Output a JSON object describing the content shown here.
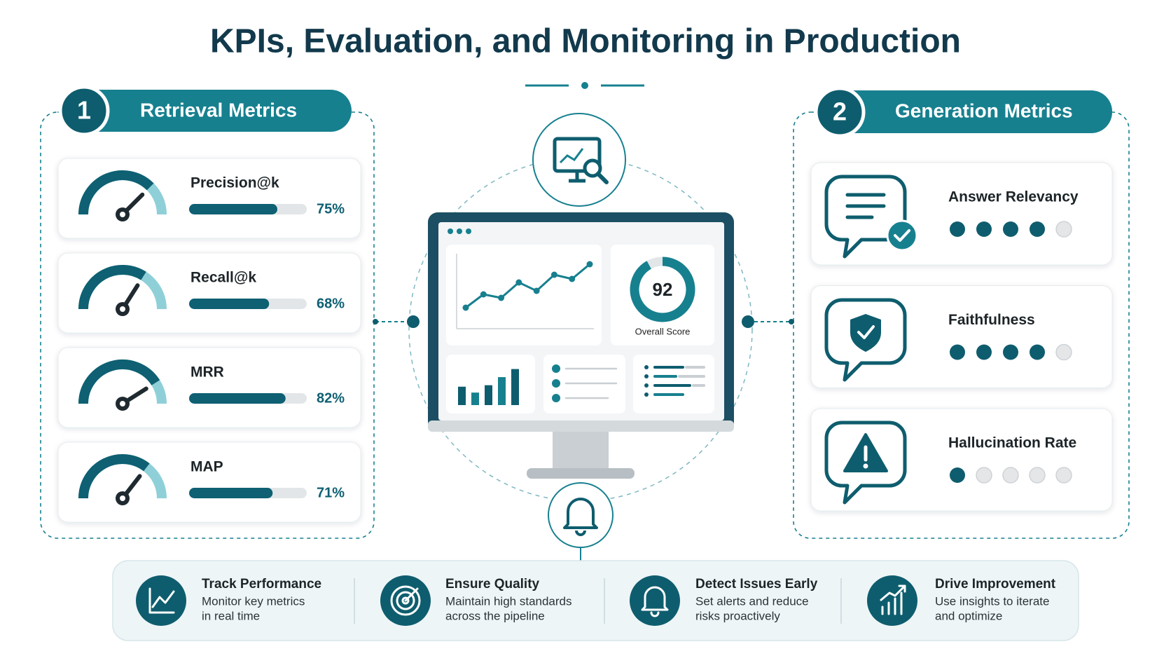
{
  "title": "KPIs, Evaluation, and Monitoring in Production",
  "retrieval": {
    "number": "1",
    "title": "Retrieval Metrics",
    "metrics": [
      {
        "name": "Precision@k",
        "value": 75,
        "label": "75%"
      },
      {
        "name": "Recall@k",
        "value": 68,
        "label": "68%"
      },
      {
        "name": "MRR",
        "value": 82,
        "label": "82%"
      },
      {
        "name": "MAP",
        "value": 71,
        "label": "71%"
      }
    ]
  },
  "generation": {
    "number": "2",
    "title": "Generation Metrics",
    "metrics": [
      {
        "name": "Answer Relevancy",
        "rating": 4,
        "dots": 5
      },
      {
        "name": "Faithfulness",
        "rating": 4,
        "dots": 5
      },
      {
        "name": "Hallucination Rate",
        "rating": 1,
        "dots": 5
      }
    ]
  },
  "dashboard": {
    "score": 92,
    "score_label": "Overall Score",
    "trend": [
      23,
      42,
      37,
      59,
      47,
      70,
      64,
      85
    ],
    "bars": [
      25,
      17,
      27,
      38,
      49
    ]
  },
  "highlights": [
    {
      "title": "Track Performance",
      "lines": [
        "Monitor key metrics",
        "in real time"
      ]
    },
    {
      "title": "Ensure Quality",
      "lines": [
        "Maintain high standards",
        "across the pipeline"
      ]
    },
    {
      "title": "Detect Issues Early",
      "lines": [
        "Set alerts and reduce",
        "risks proactively"
      ]
    },
    {
      "title": "Drive Improvement",
      "lines": [
        "Use insights to iterate",
        "and optimize"
      ]
    }
  ]
}
